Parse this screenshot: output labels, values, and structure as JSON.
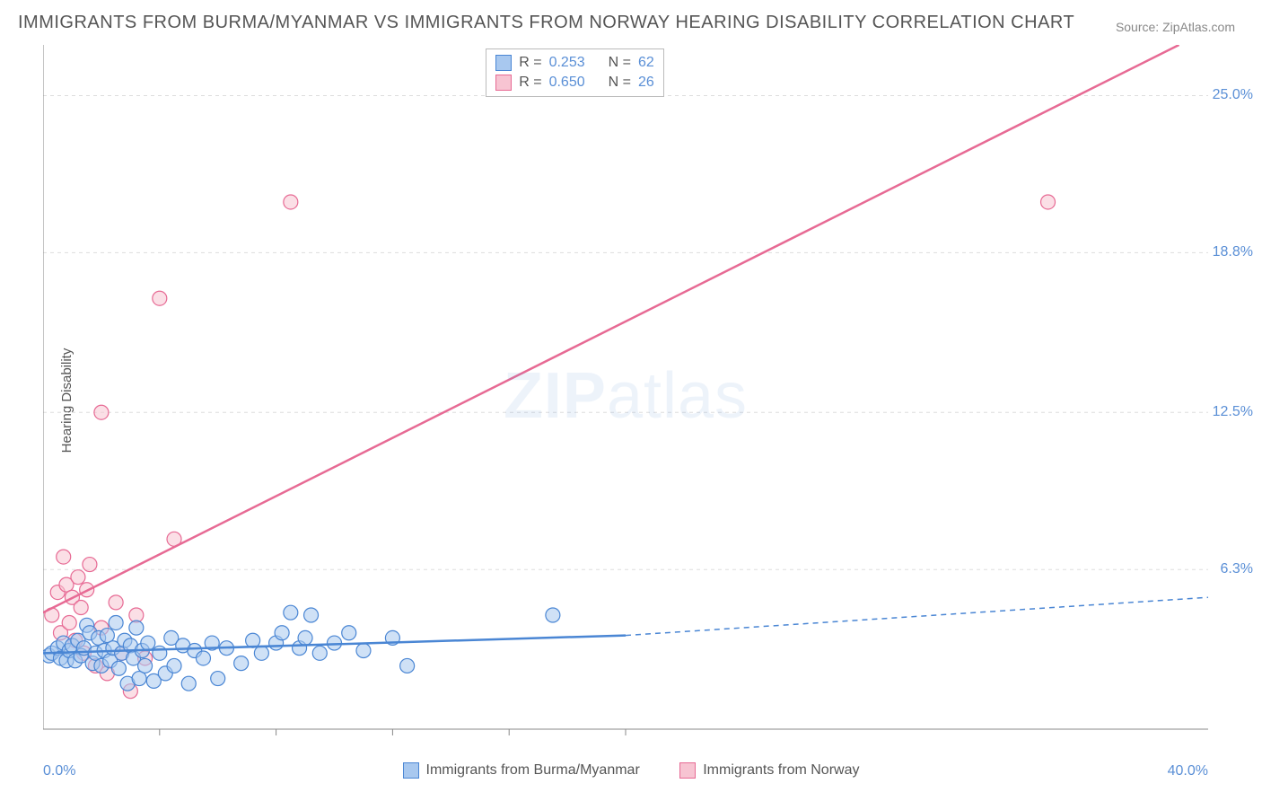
{
  "title": "IMMIGRANTS FROM BURMA/MYANMAR VS IMMIGRANTS FROM NORWAY HEARING DISABILITY CORRELATION CHART",
  "source": "Source: ZipAtlas.com",
  "ylabel": "Hearing Disability",
  "watermark_bold": "ZIP",
  "watermark_light": "atlas",
  "xaxis": {
    "min_label": "0.0%",
    "max_label": "40.0%",
    "xmin": 0.0,
    "xmax": 40.0,
    "tick_positions": [
      4,
      8,
      12,
      16,
      20
    ]
  },
  "yaxis": {
    "ymin": 0.0,
    "ymax": 27.0,
    "ticks": [
      6.3,
      12.5,
      18.8,
      25.0
    ],
    "tick_labels": [
      "6.3%",
      "12.5%",
      "18.8%",
      "25.0%"
    ]
  },
  "series_blue": {
    "label": "Immigrants from Burma/Myanmar",
    "fill": "#a8c8ef",
    "stroke": "#4a86d4",
    "fill_opacity": 0.55,
    "r_value": "0.253",
    "n_value": "62",
    "points": [
      [
        0.2,
        2.9
      ],
      [
        0.3,
        3.0
      ],
      [
        0.5,
        3.2
      ],
      [
        0.6,
        2.8
      ],
      [
        0.7,
        3.4
      ],
      [
        0.8,
        2.7
      ],
      [
        0.9,
        3.1
      ],
      [
        1.0,
        3.3
      ],
      [
        1.1,
        2.7
      ],
      [
        1.2,
        3.5
      ],
      [
        1.3,
        2.9
      ],
      [
        1.4,
        3.2
      ],
      [
        1.5,
        4.1
      ],
      [
        1.6,
        3.8
      ],
      [
        1.7,
        2.6
      ],
      [
        1.8,
        3.0
      ],
      [
        1.9,
        3.6
      ],
      [
        2.0,
        2.5
      ],
      [
        2.1,
        3.1
      ],
      [
        2.2,
        3.7
      ],
      [
        2.3,
        2.7
      ],
      [
        2.4,
        3.2
      ],
      [
        2.5,
        4.2
      ],
      [
        2.6,
        2.4
      ],
      [
        2.7,
        3.0
      ],
      [
        2.8,
        3.5
      ],
      [
        2.9,
        1.8
      ],
      [
        3.0,
        3.3
      ],
      [
        3.1,
        2.8
      ],
      [
        3.2,
        4.0
      ],
      [
        3.3,
        2.0
      ],
      [
        3.4,
        3.1
      ],
      [
        3.5,
        2.5
      ],
      [
        3.6,
        3.4
      ],
      [
        3.8,
        1.9
      ],
      [
        4.0,
        3.0
      ],
      [
        4.2,
        2.2
      ],
      [
        4.4,
        3.6
      ],
      [
        4.5,
        2.5
      ],
      [
        4.8,
        3.3
      ],
      [
        5.0,
        1.8
      ],
      [
        5.2,
        3.1
      ],
      [
        5.5,
        2.8
      ],
      [
        5.8,
        3.4
      ],
      [
        6.0,
        2.0
      ],
      [
        6.3,
        3.2
      ],
      [
        6.8,
        2.6
      ],
      [
        7.2,
        3.5
      ],
      [
        7.5,
        3.0
      ],
      [
        8.0,
        3.4
      ],
      [
        8.2,
        3.8
      ],
      [
        8.5,
        4.6
      ],
      [
        8.8,
        3.2
      ],
      [
        9.0,
        3.6
      ],
      [
        9.2,
        4.5
      ],
      [
        9.5,
        3.0
      ],
      [
        10.0,
        3.4
      ],
      [
        10.5,
        3.8
      ],
      [
        11.0,
        3.1
      ],
      [
        12.0,
        3.6
      ],
      [
        12.5,
        2.5
      ],
      [
        17.5,
        4.5
      ]
    ],
    "trend": {
      "x1": 0.0,
      "y1": 3.0,
      "x2": 20.0,
      "y2": 3.7,
      "x2_dash": 40.0,
      "y2_dash": 5.2
    }
  },
  "series_pink": {
    "label": "Immigrants from Norway",
    "fill": "#f7c4d2",
    "stroke": "#e76a94",
    "fill_opacity": 0.55,
    "r_value": "0.650",
    "n_value": "26",
    "points": [
      [
        0.3,
        4.5
      ],
      [
        0.5,
        5.4
      ],
      [
        0.6,
        3.8
      ],
      [
        0.7,
        6.8
      ],
      [
        0.8,
        5.7
      ],
      [
        0.9,
        4.2
      ],
      [
        1.0,
        5.2
      ],
      [
        1.1,
        3.5
      ],
      [
        1.2,
        6.0
      ],
      [
        1.3,
        4.8
      ],
      [
        1.4,
        3.0
      ],
      [
        1.5,
        5.5
      ],
      [
        1.6,
        6.5
      ],
      [
        1.8,
        2.5
      ],
      [
        2.0,
        4.0
      ],
      [
        2.2,
        2.2
      ],
      [
        2.5,
        5.0
      ],
      [
        2.7,
        3.0
      ],
      [
        3.0,
        1.5
      ],
      [
        3.2,
        4.5
      ],
      [
        3.5,
        2.8
      ],
      [
        2.0,
        12.5
      ],
      [
        4.5,
        7.5
      ],
      [
        4.0,
        17.0
      ],
      [
        8.5,
        20.8
      ],
      [
        34.5,
        20.8
      ]
    ],
    "trend": {
      "x1": 0.0,
      "y1": 4.6,
      "x2": 39.0,
      "y2": 27.0
    }
  },
  "legend_box": {
    "r_label": "R  =",
    "n_label": "N  ="
  },
  "colors": {
    "axis": "#888888",
    "grid": "#dddddd",
    "text_blue": "#5a8fd6"
  },
  "marker_radius": 8,
  "line_width": 2.5
}
